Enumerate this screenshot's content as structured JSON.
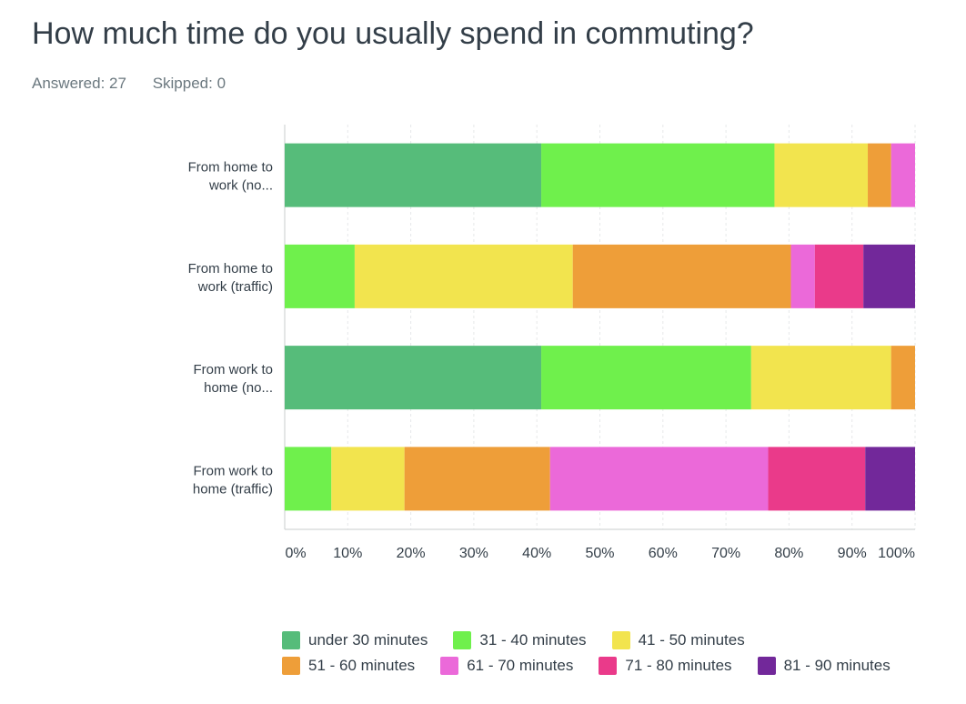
{
  "header": {
    "title": "How much time do you usually spend in commuting?",
    "answered": "Answered: 27",
    "skipped": "Skipped: 0"
  },
  "chart_data": {
    "type": "bar",
    "orientation": "horizontal",
    "stacked": true,
    "title": "How much time do you usually spend in commuting?",
    "categories": [
      "From home to work (no...",
      "From home to work (traffic)",
      "From work to home (no...",
      "From work to home (traffic)"
    ],
    "category_lines": [
      [
        "From home to",
        "work (no..."
      ],
      [
        "From home to",
        "work (traffic)"
      ],
      [
        "From work to",
        "home (no..."
      ],
      [
        "From work to",
        "home (traffic)"
      ]
    ],
    "series": [
      {
        "name": "under 30 minutes",
        "color": "#56bc7a",
        "values": [
          40.7,
          0,
          40.7,
          0
        ]
      },
      {
        "name": "31 - 40 minutes",
        "color": "#6ff04c",
        "values": [
          37.0,
          11.1,
          33.3,
          7.4
        ]
      },
      {
        "name": "41 - 50 minutes",
        "color": "#f2e44e",
        "values": [
          14.8,
          34.6,
          22.2,
          11.6
        ]
      },
      {
        "name": "51 - 60 minutes",
        "color": "#ee9e39",
        "values": [
          3.7,
          34.6,
          3.8,
          23.1
        ]
      },
      {
        "name": "61 - 70 minutes",
        "color": "#eb69d9",
        "values": [
          3.8,
          3.8,
          0,
          34.6
        ]
      },
      {
        "name": "71 - 80 minutes",
        "color": "#ea3a8a",
        "values": [
          0,
          7.7,
          0,
          15.4
        ]
      },
      {
        "name": "81 - 90 minutes",
        "color": "#72289a",
        "values": [
          0,
          8.2,
          0,
          7.9
        ]
      }
    ],
    "xlim": [
      0,
      100
    ],
    "xticks": [
      "0%",
      "10%",
      "20%",
      "30%",
      "40%",
      "50%",
      "60%",
      "70%",
      "80%",
      "90%",
      "100%"
    ],
    "grid": true,
    "legend_position": "bottom"
  }
}
